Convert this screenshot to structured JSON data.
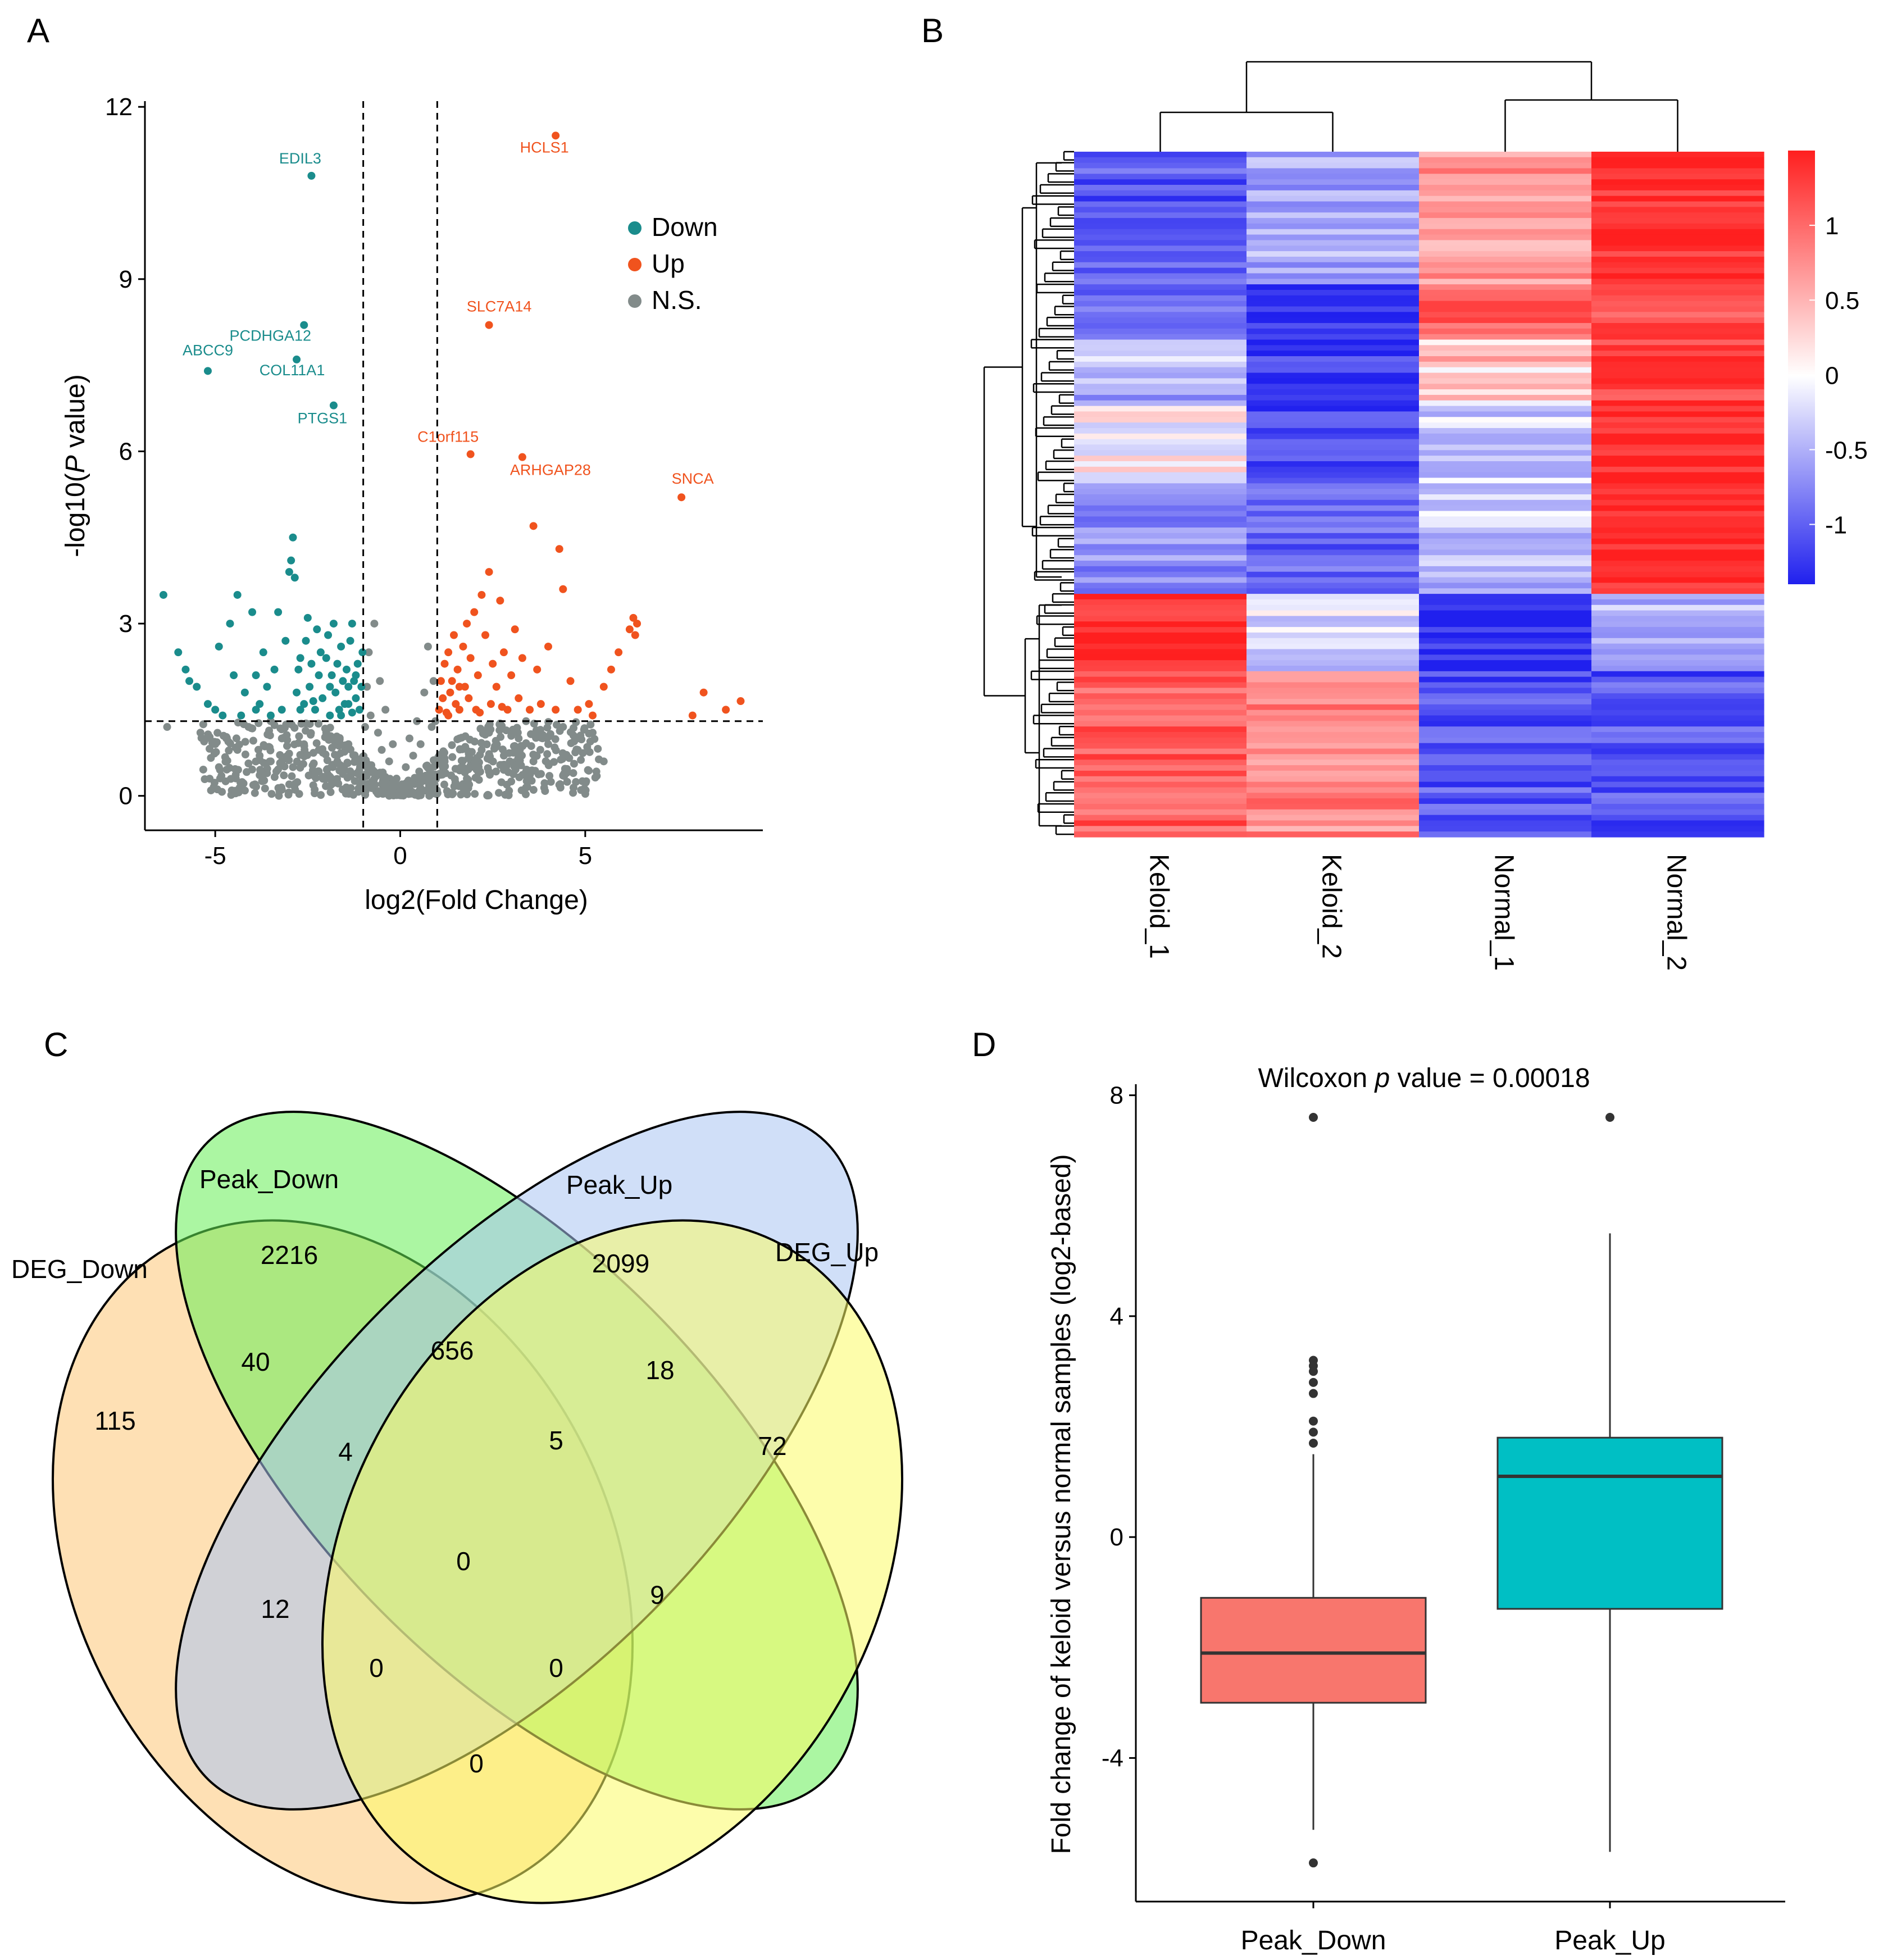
{
  "panels": {
    "A": "A",
    "B": "B",
    "C": "C",
    "D": "D"
  },
  "colors": {
    "down": "#1a8c8c",
    "up": "#f0531e",
    "ns": "#828b8a",
    "heat_low": "#2020ee",
    "heat_mid": "#ffffff",
    "heat_high": "#ff1f1f",
    "box_down": "#f8766d",
    "box_up": "#00bfc4",
    "venn_deg_down": "#fdc776",
    "venn_peak_down": "#66ee55",
    "venn_peak_up": "#a9c4f2",
    "venn_deg_up": "#fbfb66"
  },
  "chart_data": [
    {
      "panel": "A",
      "type": "scatter",
      "title": "",
      "xlabel": "log2(Fold Change)",
      "ylabel_prefix": "-log10(",
      "ylabel_italic": "P",
      "ylabel_suffix": " value)",
      "xlim": [
        -6.9,
        9.8
      ],
      "ylim": [
        -0.6,
        12.1
      ],
      "xticks": [
        -5,
        0,
        5
      ],
      "yticks": [
        0,
        3,
        6,
        9,
        12
      ],
      "fc_threshold": [
        -1,
        1
      ],
      "p_threshold": 1.3,
      "legend": {
        "position": "top-right",
        "entries": [
          {
            "key": "down",
            "label": "Down"
          },
          {
            "key": "up",
            "label": "Up"
          },
          {
            "key": "ns",
            "label": "N.S."
          }
        ]
      },
      "labeled_points": [
        {
          "gene": "EDIL3",
          "x": -2.4,
          "y": 10.8,
          "group": "down"
        },
        {
          "gene": "PCDHGA12",
          "x": -2.6,
          "y": 8.2,
          "group": "down"
        },
        {
          "gene": "ABCC9",
          "x": -5.2,
          "y": 7.4,
          "group": "down"
        },
        {
          "gene": "COL11A1",
          "x": -2.8,
          "y": 7.6,
          "group": "down"
        },
        {
          "gene": "PTGS1",
          "x": -1.8,
          "y": 6.8,
          "group": "down"
        },
        {
          "gene": "HCLS1",
          "x": 4.2,
          "y": 11.5,
          "group": "up"
        },
        {
          "gene": "SLC7A14",
          "x": 2.4,
          "y": 8.2,
          "group": "up"
        },
        {
          "gene": "C1orf115",
          "x": 1.9,
          "y": 5.95,
          "group": "up"
        },
        {
          "gene": "ARHGAP28",
          "x": 3.3,
          "y": 5.9,
          "group": "up"
        },
        {
          "gene": "SNCA",
          "x": 7.6,
          "y": 5.2,
          "group": "up"
        }
      ],
      "down_points": [
        [
          -6.4,
          3.5
        ],
        [
          -6.0,
          2.5
        ],
        [
          -5.8,
          2.2
        ],
        [
          -5.7,
          2.0
        ],
        [
          -5.5,
          1.9
        ],
        [
          -5.2,
          1.6
        ],
        [
          -5.0,
          1.5
        ],
        [
          -4.9,
          2.6
        ],
        [
          -4.8,
          1.4
        ],
        [
          -4.6,
          3.0
        ],
        [
          -4.5,
          2.1
        ],
        [
          -4.4,
          3.5
        ],
        [
          -4.2,
          1.8
        ],
        [
          -4.0,
          3.2
        ],
        [
          -3.9,
          2.1
        ],
        [
          -3.8,
          1.6
        ],
        [
          -3.7,
          2.5
        ],
        [
          -3.6,
          1.9
        ],
        [
          -3.5,
          1.4
        ],
        [
          -3.4,
          2.2
        ],
        [
          -3.3,
          3.2
        ],
        [
          -3.1,
          2.7
        ],
        [
          -3.0,
          3.9
        ],
        [
          -2.95,
          4.1
        ],
        [
          -2.9,
          4.5
        ],
        [
          -2.85,
          3.8
        ],
        [
          -2.8,
          1.8
        ],
        [
          -2.75,
          2.2
        ],
        [
          -2.7,
          2.4
        ],
        [
          -2.6,
          1.6
        ],
        [
          -2.55,
          2.7
        ],
        [
          -2.5,
          3.1
        ],
        [
          -2.45,
          1.9
        ],
        [
          -2.4,
          2.3
        ],
        [
          -2.3,
          1.5
        ],
        [
          -2.25,
          2.9
        ],
        [
          -2.2,
          2.1
        ],
        [
          -2.15,
          2.5
        ],
        [
          -2.1,
          1.7
        ],
        [
          -2.0,
          2.4
        ],
        [
          -1.95,
          2.8
        ],
        [
          -1.9,
          1.4
        ],
        [
          -1.85,
          2.1
        ],
        [
          -1.8,
          3.0
        ],
        [
          -1.75,
          1.8
        ],
        [
          -1.7,
          2.3
        ],
        [
          -1.65,
          1.5
        ],
        [
          -1.6,
          2.6
        ],
        [
          -1.55,
          2.0
        ],
        [
          -1.5,
          1.6
        ],
        [
          -1.45,
          2.2
        ],
        [
          -1.4,
          1.9
        ],
        [
          -1.35,
          2.7
        ],
        [
          -1.3,
          1.45
        ],
        [
          -1.25,
          2.0
        ],
        [
          -1.2,
          1.7
        ],
        [
          -1.15,
          2.3
        ],
        [
          -1.1,
          1.5
        ],
        [
          -1.05,
          1.9
        ],
        [
          -1.02,
          2.5
        ],
        [
          -1.3,
          3.0
        ],
        [
          -2.7,
          1.5
        ],
        [
          -3.2,
          1.5
        ],
        [
          -3.9,
          1.5
        ],
        [
          -4.3,
          1.4
        ],
        [
          -1.6,
          1.4
        ],
        [
          -1.4,
          1.6
        ],
        [
          -1.2,
          2.1
        ],
        [
          -1.9,
          1.9
        ],
        [
          -2.35,
          1.65
        ]
      ],
      "up_points": [
        [
          1.05,
          1.5
        ],
        [
          1.1,
          2.0
        ],
        [
          1.15,
          1.7
        ],
        [
          1.2,
          2.3
        ],
        [
          1.25,
          1.45
        ],
        [
          1.3,
          2.5
        ],
        [
          1.35,
          1.8
        ],
        [
          1.4,
          2.0
        ],
        [
          1.45,
          2.8
        ],
        [
          1.5,
          1.6
        ],
        [
          1.55,
          2.2
        ],
        [
          1.6,
          1.5
        ],
        [
          1.7,
          2.6
        ],
        [
          1.75,
          1.9
        ],
        [
          1.8,
          3.0
        ],
        [
          1.85,
          1.7
        ],
        [
          1.9,
          2.4
        ],
        [
          2.0,
          3.2
        ],
        [
          2.05,
          1.5
        ],
        [
          2.1,
          2.1
        ],
        [
          2.2,
          3.5
        ],
        [
          2.3,
          2.8
        ],
        [
          2.4,
          3.9
        ],
        [
          2.45,
          1.6
        ],
        [
          2.5,
          2.3
        ],
        [
          2.6,
          1.9
        ],
        [
          2.7,
          3.4
        ],
        [
          2.8,
          2.5
        ],
        [
          2.9,
          1.5
        ],
        [
          3.0,
          2.1
        ],
        [
          3.1,
          2.9
        ],
        [
          3.2,
          1.7
        ],
        [
          3.3,
          2.4
        ],
        [
          3.5,
          1.5
        ],
        [
          3.6,
          4.7
        ],
        [
          3.7,
          2.2
        ],
        [
          3.8,
          1.6
        ],
        [
          4.0,
          2.6
        ],
        [
          4.2,
          1.5
        ],
        [
          4.3,
          4.3
        ],
        [
          4.4,
          3.6
        ],
        [
          4.6,
          2.0
        ],
        [
          4.8,
          1.5
        ],
        [
          5.1,
          1.6
        ],
        [
          5.2,
          1.4
        ],
        [
          5.5,
          1.9
        ],
        [
          5.7,
          2.2
        ],
        [
          5.9,
          2.5
        ],
        [
          6.2,
          2.9
        ],
        [
          6.3,
          3.1
        ],
        [
          6.4,
          3.0
        ],
        [
          6.35,
          2.8
        ],
        [
          7.9,
          1.4
        ],
        [
          8.2,
          1.8
        ],
        [
          8.8,
          1.5
        ],
        [
          9.2,
          1.65
        ],
        [
          1.3,
          1.4
        ],
        [
          1.6,
          1.9
        ],
        [
          2.15,
          1.45
        ],
        [
          2.75,
          1.55
        ]
      ],
      "ns_points": [
        [
          -5.4,
          1.1
        ],
        [
          -5.0,
          0.9
        ],
        [
          -4.7,
          1.0
        ],
        [
          -4.4,
          0.8
        ],
        [
          -4.1,
          1.2
        ],
        [
          -3.8,
          0.7
        ],
        [
          -3.5,
          0.6
        ],
        [
          -3.2,
          1.0
        ],
        [
          -2.9,
          0.5
        ],
        [
          -2.6,
          0.9
        ],
        [
          -2.3,
          0.4
        ],
        [
          -2.0,
          1.1
        ],
        [
          -1.7,
          0.6
        ],
        [
          -1.4,
          0.9
        ],
        [
          -1.1,
          0.4
        ],
        [
          -0.9,
          1.9
        ],
        [
          -0.85,
          2.5
        ],
        [
          -0.8,
          1.4
        ],
        [
          -0.7,
          3.0
        ],
        [
          -0.6,
          1.1
        ],
        [
          -0.55,
          2.0
        ],
        [
          -0.5,
          0.8
        ],
        [
          -0.4,
          1.5
        ],
        [
          -0.3,
          0.6
        ],
        [
          -0.2,
          0.9
        ],
        [
          -0.1,
          0.3
        ],
        [
          0.05,
          0.2
        ],
        [
          0.15,
          0.5
        ],
        [
          0.25,
          1.0
        ],
        [
          0.35,
          0.7
        ],
        [
          0.45,
          1.3
        ],
        [
          0.55,
          0.9
        ],
        [
          0.65,
          1.8
        ],
        [
          0.75,
          2.6
        ],
        [
          0.85,
          1.2
        ],
        [
          0.9,
          2.0
        ],
        [
          1.2,
          0.6
        ],
        [
          1.6,
          1.0
        ],
        [
          2.0,
          0.5
        ],
        [
          2.4,
          1.1
        ],
        [
          2.8,
          0.7
        ],
        [
          3.2,
          1.0
        ],
        [
          3.6,
          0.6
        ],
        [
          4.0,
          0.9
        ],
        [
          4.4,
          1.2
        ],
        [
          4.8,
          0.8
        ],
        [
          5.2,
          1.1
        ],
        [
          5.5,
          0.6
        ],
        [
          -6.3,
          1.2
        ],
        [
          -3.0,
          0.2
        ],
        [
          -1.9,
          0.3
        ],
        [
          1.8,
          0.3
        ],
        [
          3.0,
          0.25
        ],
        [
          -4.9,
          0.5
        ],
        [
          4.5,
          0.4
        ],
        [
          -3.5,
          1.3
        ],
        [
          3.4,
          1.3
        ],
        [
          -2.2,
          0.8
        ],
        [
          2.2,
          0.8
        ],
        [
          -0.95,
          1.2
        ],
        [
          0.95,
          1.3
        ]
      ]
    },
    {
      "panel": "B",
      "type": "heatmap",
      "columns": [
        "Keloid_1",
        "Keloid_2",
        "Normal_1",
        "Normal_2"
      ],
      "colorbar_ticks": [
        1,
        0.5,
        0,
        -0.5,
        -1
      ],
      "colorbar_range": [
        -1.4,
        1.5
      ],
      "column_dendrogram": "((Keloid_1,Keloid_2),(Normal_1,Normal_2))",
      "row_blocks": [
        {
          "rows": 24,
          "values": [
            -1.0,
            -0.4,
            0.6,
            1.3
          ],
          "jitter": 0.35
        },
        {
          "rows": 10,
          "values": [
            -0.8,
            -1.3,
            1.0,
            1.1
          ],
          "jitter": 0.3
        },
        {
          "rows": 12,
          "values": [
            -0.4,
            -1.2,
            0.3,
            1.2
          ],
          "jitter": 0.35
        },
        {
          "rows": 14,
          "values": [
            0.0,
            -1.1,
            -0.2,
            1.4
          ],
          "jitter": 0.3
        },
        {
          "rows": 20,
          "values": [
            -0.6,
            -0.9,
            -0.3,
            1.4
          ],
          "jitter": 0.3
        },
        {
          "rows": 14,
          "values": [
            1.4,
            -0.2,
            -1.3,
            -0.3
          ],
          "jitter": 0.3
        },
        {
          "rows": 30,
          "values": [
            1.0,
            0.7,
            -1.0,
            -1.0
          ],
          "jitter": 0.35
        }
      ]
    },
    {
      "panel": "C",
      "type": "venn",
      "sets": [
        "DEG_Down",
        "Peak_Down",
        "Peak_Up",
        "DEG_Up"
      ],
      "regions": [
        {
          "sets": "DEG_Down",
          "value": "115"
        },
        {
          "sets": "Peak_Down",
          "value": "2216"
        },
        {
          "sets": "Peak_Up",
          "value": "2099"
        },
        {
          "sets": "DEG_Up",
          "value": "72"
        },
        {
          "sets": "DEG_Down&Peak_Down",
          "value": "40"
        },
        {
          "sets": "Peak_Down&Peak_Up",
          "value": "656"
        },
        {
          "sets": "Peak_Up&DEG_Up",
          "value": "18"
        },
        {
          "sets": "DEG_Down&Peak_Down&Peak_Up",
          "value": "4"
        },
        {
          "sets": "Peak_Down&Peak_Up&DEG_Up",
          "value": "5"
        },
        {
          "sets": "all",
          "value": "0"
        },
        {
          "sets": "DEG_Down&Peak_Up",
          "value": "12"
        },
        {
          "sets": "Peak_Down&DEG_Up",
          "value": "9"
        },
        {
          "sets": "DEG_Down&Peak_Up&DEG_Up",
          "value": "0"
        },
        {
          "sets": "DEG_Down&Peak_Down&DEG_Up",
          "value": "0"
        },
        {
          "sets": "DEG_Down&DEG_Up",
          "value": "0"
        }
      ]
    },
    {
      "panel": "D",
      "type": "boxplot",
      "title_prefix": "Wilcoxon ",
      "title_italic": "p",
      "title_suffix": " value = 0.00018",
      "ylabel": "Fold change of keloid versus normal samples (log2-based)",
      "categories": [
        "Peak_Down",
        "Peak_Up"
      ],
      "ylim": [
        -6.6,
        8.2
      ],
      "yticks": [
        -4,
        0,
        4,
        8
      ],
      "boxes": [
        {
          "name": "Peak_Down",
          "q1": -3.0,
          "median": -2.1,
          "q3": -1.1,
          "whisker_low": -5.3,
          "whisker_high": 1.5,
          "outliers": [
            7.6,
            3.2,
            3.1,
            3.0,
            2.8,
            2.6,
            2.1,
            1.9,
            1.7,
            -5.9
          ]
        },
        {
          "name": "Peak_Up",
          "q1": -1.3,
          "median": 1.1,
          "q3": 1.8,
          "whisker_low": -5.7,
          "whisker_high": 5.5,
          "outliers": [
            7.6
          ]
        }
      ]
    }
  ]
}
